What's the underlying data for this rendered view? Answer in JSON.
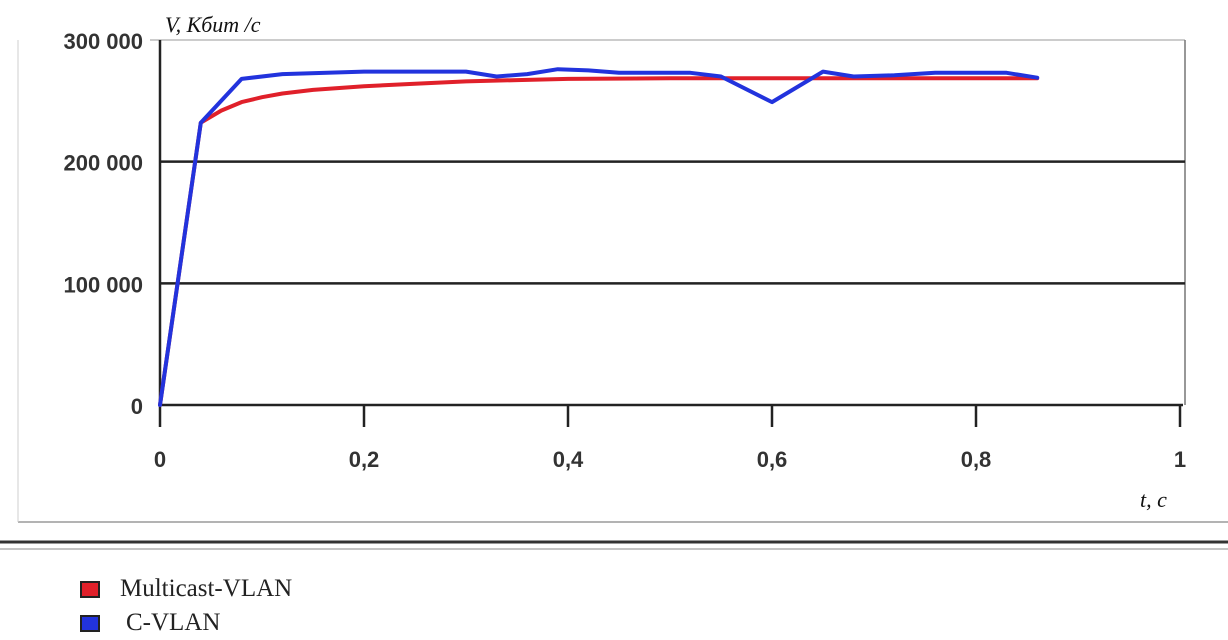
{
  "chart_data": {
    "type": "line",
    "ylabel": "V, Кбит /с",
    "xlabel": "t, с",
    "xlim": [
      0,
      1
    ],
    "ylim": [
      0,
      300000
    ],
    "x_ticks": [
      0,
      0.2,
      0.4,
      0.6,
      0.8,
      1
    ],
    "x_tick_labels": [
      "0",
      "0,2",
      "0,4",
      "0,6",
      "0,8",
      "1"
    ],
    "y_ticks": [
      0,
      100000,
      200000,
      300000
    ],
    "y_tick_labels": [
      "0",
      "100 000",
      "200 000",
      "300 000"
    ],
    "grid": "horizontal",
    "legend_position": "bottom-left",
    "series": [
      {
        "name": "Multicast-VLAN",
        "color": "#e0202a",
        "x": [
          0,
          0.04,
          0.06,
          0.08,
          0.1,
          0.12,
          0.15,
          0.2,
          0.25,
          0.3,
          0.35,
          0.4,
          0.5,
          0.6,
          0.7,
          0.8,
          0.86
        ],
        "y": [
          0,
          232000,
          242000,
          249000,
          253000,
          256000,
          259000,
          262000,
          264000,
          266000,
          267000,
          268000,
          268500,
          268500,
          268500,
          268500,
          268500
        ]
      },
      {
        "name": "C-VLAN",
        "color": "#2233dd",
        "x": [
          0,
          0.04,
          0.08,
          0.12,
          0.2,
          0.3,
          0.33,
          0.36,
          0.39,
          0.42,
          0.45,
          0.52,
          0.55,
          0.6,
          0.65,
          0.68,
          0.72,
          0.76,
          0.83,
          0.86
        ],
        "y": [
          0,
          232000,
          268000,
          272000,
          274000,
          274000,
          270000,
          272000,
          276000,
          275000,
          273000,
          273000,
          270000,
          249000,
          274000,
          270000,
          271000,
          273000,
          273000,
          269000
        ]
      }
    ]
  }
}
